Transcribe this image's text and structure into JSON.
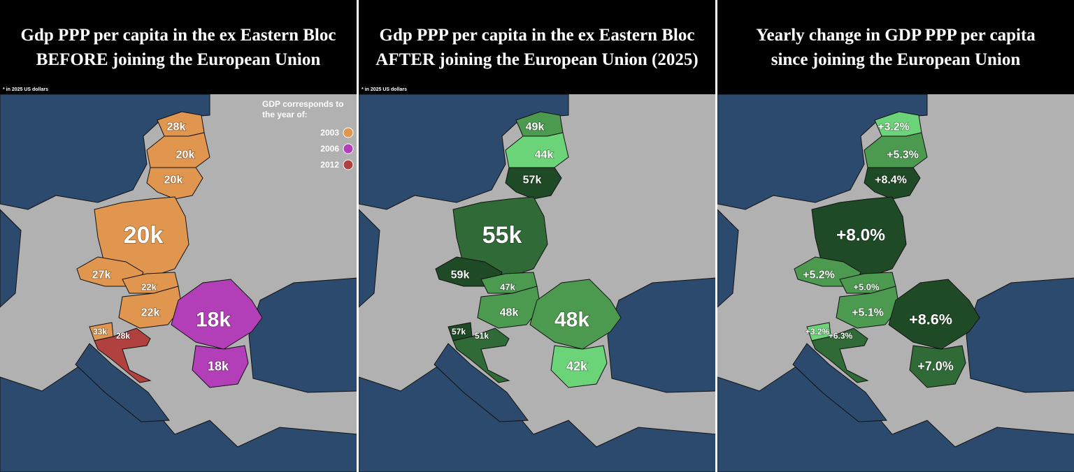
{
  "panels": [
    {
      "title": [
        "Gdp PPP per capita in the ex Eastern Bloc",
        "BEFORE joining the European Union"
      ],
      "note": "* in 2025 US dollars",
      "legend": {
        "title": [
          "GDP corresponds to",
          "the year of:"
        ],
        "items": [
          {
            "label": "2003",
            "color": "#e0964e"
          },
          {
            "label": "2006",
            "color": "#b23fb8"
          },
          {
            "label": "2012",
            "color": "#b0413f"
          }
        ]
      },
      "regions": [
        {
          "label": "28k",
          "color": "#e0964e"
        },
        {
          "label": "20k",
          "color": "#e0964e"
        },
        {
          "label": "20k",
          "color": "#e0964e"
        },
        {
          "label": "20k",
          "color": "#e0964e"
        },
        {
          "label": "27k",
          "color": "#e0964e"
        },
        {
          "label": "22k",
          "color": "#e0964e"
        },
        {
          "label": "22k",
          "color": "#e0964e"
        },
        {
          "label": "33k",
          "color": "#e0964e"
        },
        {
          "label": "28k",
          "color": "#b0413f"
        },
        {
          "label": "18k",
          "color": "#b23fb8"
        },
        {
          "label": "18k",
          "color": "#b23fb8"
        }
      ]
    },
    {
      "title": [
        "Gdp PPP per capita in the ex Eastern Bloc",
        "AFTER joining the European Union (2025)"
      ],
      "note": "* in 2025 US dollars",
      "regions": [
        {
          "label": "49k",
          "color": "#4c9a50"
        },
        {
          "label": "44k",
          "color": "#6cd478"
        },
        {
          "label": "57k",
          "color": "#1f4a26"
        },
        {
          "label": "55k",
          "color": "#2f6a37"
        },
        {
          "label": "59k",
          "color": "#1f4a26"
        },
        {
          "label": "47k",
          "color": "#4c9a50"
        },
        {
          "label": "48k",
          "color": "#4c9a50"
        },
        {
          "label": "57k",
          "color": "#1f4a26"
        },
        {
          "label": "51k",
          "color": "#2f6a37"
        },
        {
          "label": "48k",
          "color": "#4c9a50"
        },
        {
          "label": "42k",
          "color": "#6cd478"
        }
      ]
    },
    {
      "title": [
        "Yearly change in GDP PPP per capita",
        "since joining the European Union"
      ],
      "regions": [
        {
          "label": "+3.2%",
          "color": "#6cd478"
        },
        {
          "label": "+5.3%",
          "color": "#4c9a50"
        },
        {
          "label": "+8.4%",
          "color": "#1f4a26"
        },
        {
          "label": "+8.0%",
          "color": "#1f4a26"
        },
        {
          "label": "+5.2%",
          "color": "#4c9a50"
        },
        {
          "label": "+5.0%",
          "color": "#4c9a50"
        },
        {
          "label": "+5.1%",
          "color": "#4c9a50"
        },
        {
          "label": "+3.2%",
          "color": "#6cd478"
        },
        {
          "label": "+6.3%",
          "color": "#2f6a37"
        },
        {
          "label": "+8.6%",
          "color": "#1f4a26"
        },
        {
          "label": "+7.0%",
          "color": "#2f6a37"
        }
      ]
    }
  ]
}
